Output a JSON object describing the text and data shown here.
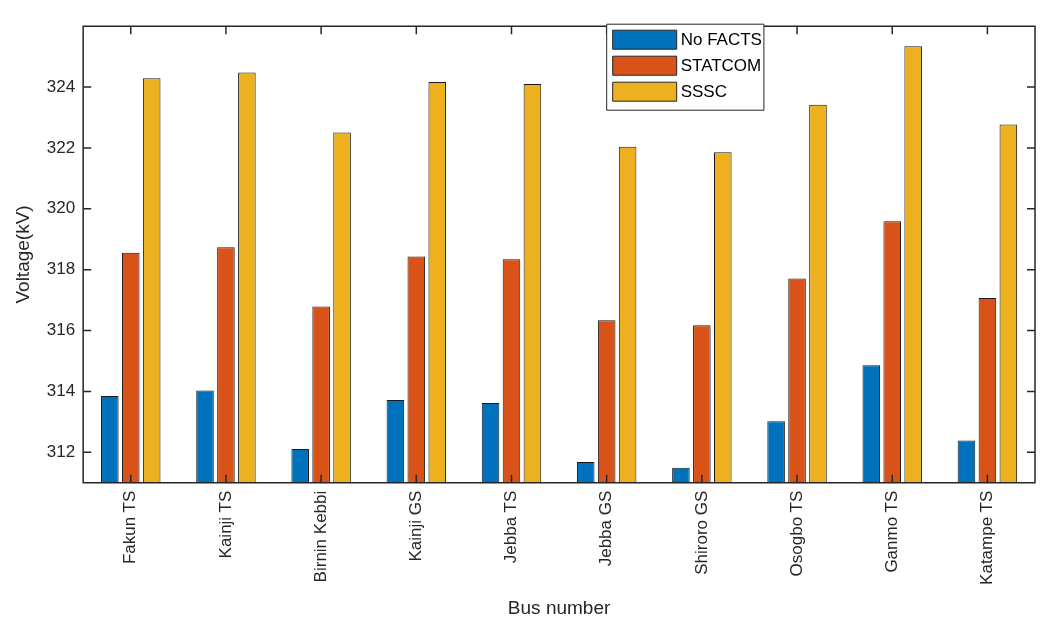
{
  "chart_data": {
    "type": "bar",
    "xlabel": "Bus number",
    "ylabel": "Voltage(kV)",
    "categories": [
      "Fakun TS",
      "Kainji TS",
      "Birnin Kebbi",
      "Kainji GS",
      "Jebba TS",
      "Jebba GS",
      "Shiroro GS",
      "Osogbo TS",
      "Ganmo TS",
      "Katampe TS"
    ],
    "series": [
      {
        "name": "No FACTS",
        "color": "#0072bd",
        "values": [
          313.85,
          314.03,
          312.11,
          313.72,
          313.62,
          311.68,
          311.49,
          313.02,
          314.86,
          312.39
        ]
      },
      {
        "name": "STATCOM",
        "color": "#d95319",
        "values": [
          318.56,
          318.74,
          316.79,
          318.43,
          318.34,
          316.34,
          316.17,
          317.71,
          319.59,
          317.07
        ]
      },
      {
        "name": "SSSC",
        "color": "#edb120",
        "values": [
          324.29,
          324.48,
          322.51,
          324.17,
          324.1,
          322.04,
          321.86,
          323.42,
          325.34,
          322.77
        ]
      }
    ],
    "ylim": [
      311,
      326
    ],
    "yticks": [
      312,
      314,
      316,
      318,
      320,
      322,
      324
    ],
    "grid": false,
    "legend": "top"
  }
}
